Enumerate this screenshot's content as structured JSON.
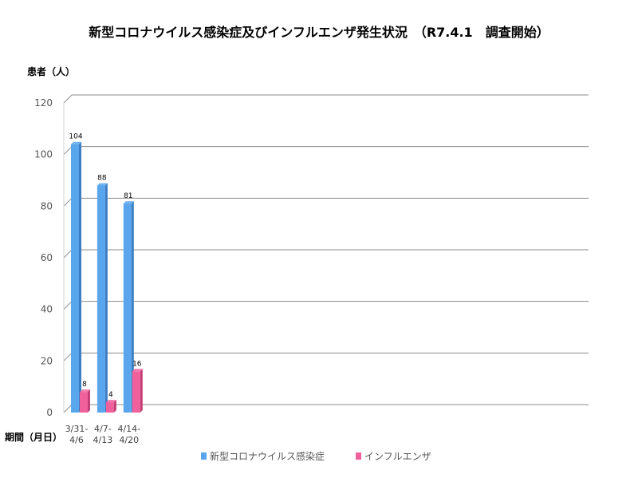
{
  "chart_data": {
    "type": "bar",
    "title": "新型コロナウイルス感染症及びインフルエンザ発生状況　（R7.4.1　調査開始）",
    "ylabel": "患者（人）",
    "xlabel": "期間（月日）",
    "ylim": [
      0,
      120
    ],
    "yticks": [
      0,
      20,
      40,
      60,
      80,
      100,
      120
    ],
    "grid": true,
    "legend_position": "bottom",
    "categories": [
      [
        "3/31-",
        "4/6"
      ],
      [
        "4/7-",
        "4/13"
      ],
      [
        "4/14-",
        "4/20"
      ]
    ],
    "total_slots": 20,
    "series": [
      {
        "name": "新型コロナウイルス感染症",
        "values": [
          104,
          88,
          81
        ],
        "color": "#5aa6ec",
        "side_color": "#3b7ec4"
      },
      {
        "name": "インフルエンザ",
        "values": [
          8,
          4,
          16
        ],
        "color": "#f0609a",
        "side_color": "#c43f77"
      }
    ]
  }
}
